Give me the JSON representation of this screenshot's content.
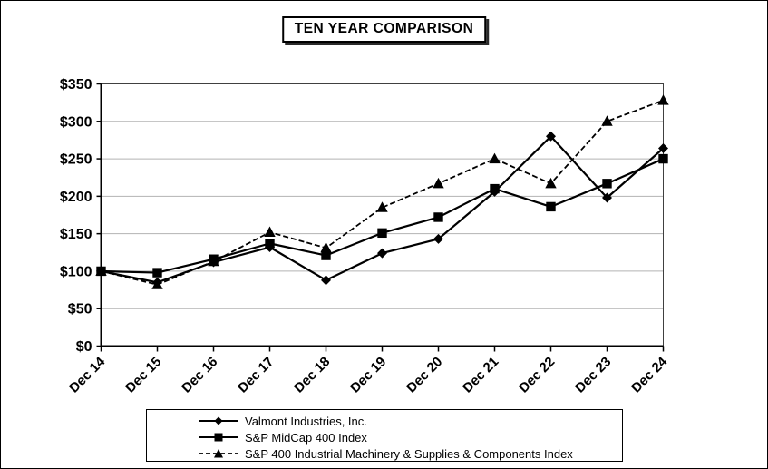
{
  "title": "TEN YEAR COMPARISON",
  "chart_data": {
    "type": "line",
    "title": "TEN YEAR COMPARISON",
    "categories": [
      "Dec 14",
      "Dec 15",
      "Dec 16",
      "Dec 17",
      "Dec 18",
      "Dec 19",
      "Dec 20",
      "Dec 21",
      "Dec 22",
      "Dec 23",
      "Dec 24"
    ],
    "series": [
      {
        "name": "Valmont Industries, Inc.",
        "marker": "diamond",
        "line": "solid",
        "values": [
          100,
          85,
          112,
          132,
          88,
          124,
          143,
          206,
          280,
          198,
          264
        ]
      },
      {
        "name": "S&P MidCap 400 Index",
        "marker": "square",
        "line": "solid",
        "values": [
          100,
          98,
          116,
          137,
          121,
          151,
          172,
          210,
          186,
          217,
          250
        ]
      },
      {
        "name": "S&P 400 Industrial Machinery & Supplies & Components Index",
        "marker": "triangle",
        "line": "dashed",
        "values": [
          100,
          82,
          113,
          152,
          131,
          185,
          217,
          250,
          217,
          300,
          328
        ]
      }
    ],
    "ylim": [
      0,
      350
    ],
    "y_ticks": [
      0,
      50,
      100,
      150,
      200,
      250,
      300,
      350
    ],
    "y_tick_prefix": "$",
    "grid": "horizontal",
    "legend_position": "bottom"
  },
  "colors": {
    "series": "#000000",
    "grid": "#b3b3b3",
    "plot_frame": "#404040",
    "axis": "#000000",
    "background": "#ffffff"
  }
}
